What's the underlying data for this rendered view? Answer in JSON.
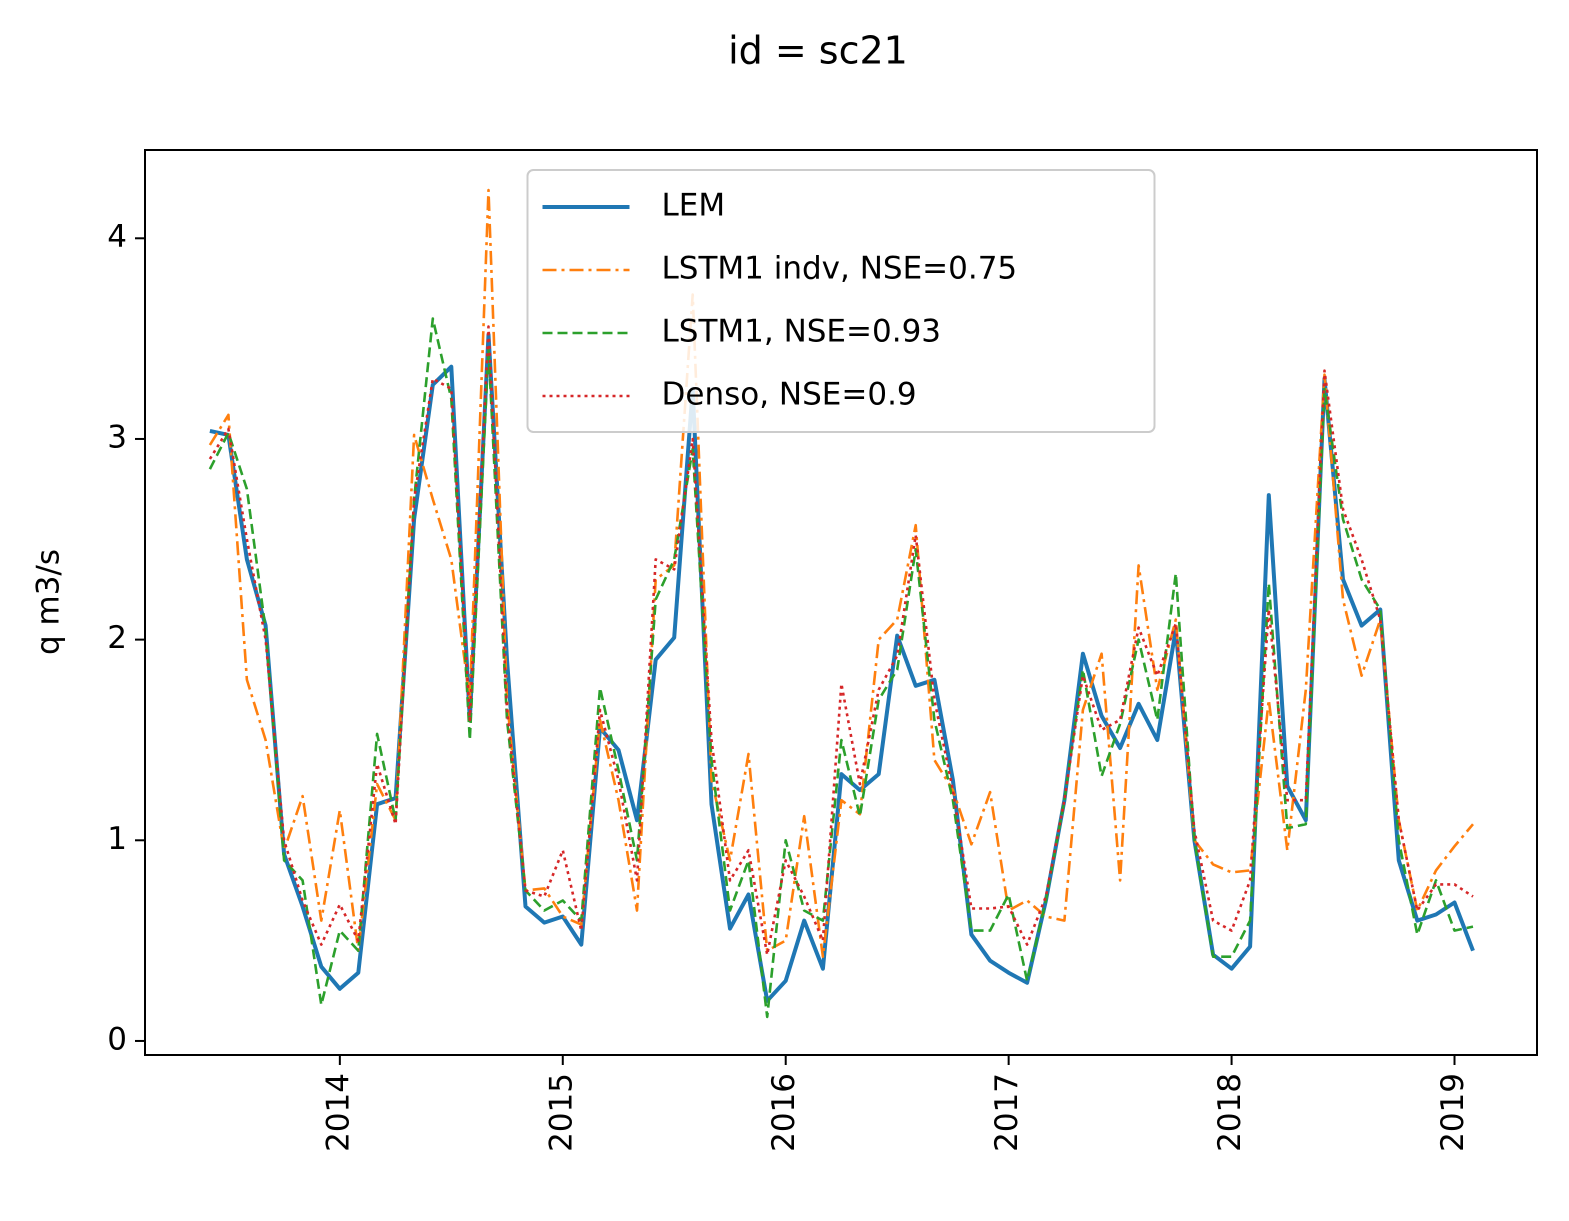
{
  "chart_data": {
    "type": "line",
    "title": "id = sc21",
    "ylabel": "q m3/s",
    "legend": "upper center",
    "x": [
      2013.417,
      2013.5,
      2013.583,
      2013.667,
      2013.75,
      2013.833,
      2013.917,
      2014.0,
      2014.083,
      2014.167,
      2014.25,
      2014.333,
      2014.417,
      2014.5,
      2014.583,
      2014.667,
      2014.75,
      2014.833,
      2014.917,
      2015.0,
      2015.083,
      2015.167,
      2015.25,
      2015.333,
      2015.417,
      2015.5,
      2015.583,
      2015.667,
      2015.75,
      2015.833,
      2015.917,
      2016.0,
      2016.083,
      2016.167,
      2016.25,
      2016.333,
      2016.417,
      2016.5,
      2016.583,
      2016.667,
      2016.75,
      2016.833,
      2016.917,
      2017.0,
      2017.083,
      2017.167,
      2017.25,
      2017.333,
      2017.417,
      2017.5,
      2017.583,
      2017.667,
      2017.75,
      2017.833,
      2017.917,
      2018.0,
      2018.083,
      2018.167,
      2018.25,
      2018.333,
      2018.417,
      2018.5,
      2018.583,
      2018.667,
      2018.75,
      2018.833,
      2018.917,
      2019.0,
      2019.083
    ],
    "series": [
      {
        "name": "LEM",
        "color": "#1f77b4",
        "linestyle": "solid",
        "values": [
          3.04,
          3.02,
          2.4,
          2.07,
          0.93,
          0.67,
          0.37,
          0.26,
          0.34,
          1.18,
          1.21,
          2.6,
          3.27,
          3.36,
          1.6,
          3.52,
          1.9,
          0.67,
          0.59,
          0.62,
          0.48,
          1.56,
          1.45,
          1.1,
          1.9,
          2.01,
          3.25,
          1.18,
          0.56,
          0.73,
          0.2,
          0.3,
          0.6,
          0.36,
          1.33,
          1.25,
          1.33,
          2.02,
          1.77,
          1.8,
          1.3,
          0.53,
          0.4,
          0.34,
          0.29,
          0.7,
          1.2,
          1.93,
          1.62,
          1.46,
          1.68,
          1.5,
          2.05,
          1.0,
          0.43,
          0.36,
          0.47,
          2.72,
          1.27,
          1.1,
          3.3,
          2.3,
          2.07,
          2.15,
          0.9,
          0.6,
          0.63,
          0.69,
          0.45
        ]
      },
      {
        "name": "LSTM1 indv, NSE=0.75",
        "color": "#ff7f0e",
        "linestyle": "dashdot",
        "values": [
          2.97,
          3.12,
          1.8,
          1.5,
          0.95,
          1.22,
          0.6,
          1.15,
          0.45,
          1.28,
          1.1,
          3.02,
          2.7,
          2.4,
          1.7,
          4.24,
          1.7,
          0.75,
          0.76,
          0.62,
          0.58,
          1.6,
          1.2,
          0.65,
          2.3,
          2.37,
          3.72,
          1.3,
          0.9,
          1.43,
          0.45,
          0.5,
          1.12,
          0.42,
          1.2,
          1.13,
          2.0,
          2.1,
          2.57,
          1.4,
          1.25,
          0.98,
          1.24,
          0.65,
          0.7,
          0.62,
          0.6,
          1.65,
          1.93,
          0.8,
          2.37,
          1.75,
          2.1,
          1.0,
          0.88,
          0.84,
          0.85,
          1.7,
          0.95,
          1.75,
          3.32,
          2.2,
          1.82,
          2.1,
          1.1,
          0.65,
          0.85,
          0.97,
          1.08
        ]
      },
      {
        "name": "LSTM1, NSE=0.93",
        "color": "#2ca02c",
        "linestyle": "dashed",
        "values": [
          2.85,
          3.03,
          2.75,
          2.05,
          0.9,
          0.8,
          0.18,
          0.55,
          0.45,
          1.53,
          1.1,
          2.7,
          3.6,
          3.2,
          1.5,
          3.45,
          1.6,
          0.75,
          0.65,
          0.7,
          0.6,
          1.76,
          1.35,
          0.9,
          2.2,
          2.4,
          2.95,
          1.4,
          0.65,
          0.9,
          0.12,
          1.0,
          0.65,
          0.6,
          1.5,
          1.12,
          1.7,
          1.85,
          2.45,
          1.6,
          1.2,
          0.55,
          0.55,
          0.73,
          0.3,
          0.7,
          1.2,
          1.85,
          1.32,
          1.58,
          2.0,
          1.6,
          2.33,
          1.0,
          0.42,
          0.42,
          0.6,
          2.28,
          1.06,
          1.08,
          3.25,
          2.6,
          2.3,
          2.15,
          1.0,
          0.53,
          0.8,
          0.55,
          0.57
        ]
      },
      {
        "name": "Denso, NSE=0.9",
        "color": "#d62728",
        "linestyle": "dotted",
        "values": [
          2.9,
          3.05,
          2.5,
          2.0,
          1.0,
          0.7,
          0.48,
          0.68,
          0.5,
          1.38,
          1.08,
          2.7,
          3.3,
          3.25,
          1.6,
          3.56,
          1.65,
          0.75,
          0.72,
          0.95,
          0.55,
          1.65,
          1.3,
          0.8,
          2.4,
          2.35,
          3.0,
          1.5,
          0.8,
          0.95,
          0.43,
          0.9,
          0.72,
          0.5,
          1.78,
          1.28,
          1.75,
          1.92,
          2.52,
          1.7,
          1.25,
          0.66,
          0.66,
          0.67,
          0.48,
          0.72,
          1.2,
          1.82,
          1.55,
          1.6,
          2.06,
          1.82,
          2.08,
          1.05,
          0.6,
          0.55,
          0.8,
          2.15,
          1.2,
          1.2,
          3.34,
          2.65,
          2.4,
          2.1,
          1.1,
          0.65,
          0.78,
          0.78,
          0.72
        ]
      }
    ],
    "xlim": [
      2013.126,
      2019.37
    ],
    "xticks": [
      2014,
      2015,
      2016,
      2017,
      2018,
      2019
    ],
    "ylim": [
      -0.07,
      4.44
    ],
    "yticks": [
      0,
      1,
      2,
      3,
      4
    ]
  }
}
